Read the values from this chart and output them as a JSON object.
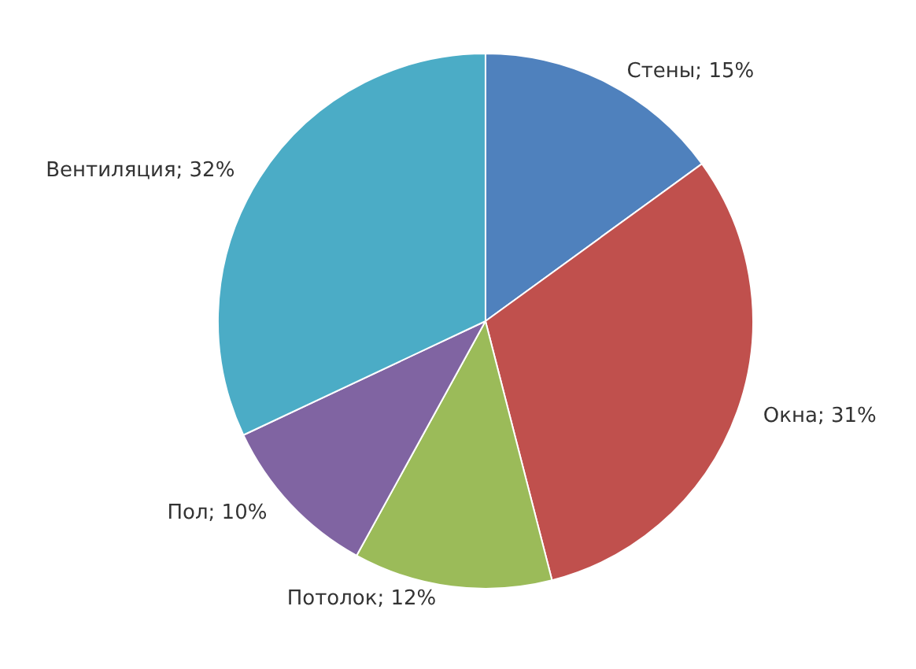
{
  "chart_data": {
    "type": "pie",
    "categories": [
      "Стены",
      "Окна",
      "Потолок",
      "Пол",
      "Вентиляция"
    ],
    "values": [
      15,
      31,
      12,
      10,
      32
    ],
    "value_labels": [
      "15%",
      "31%",
      "12%",
      "10%",
      "32%"
    ],
    "colors": [
      "#4f81bd",
      "#c0504d",
      "#9bbb59",
      "#8064a2",
      "#4bacc6"
    ],
    "legend": false
  }
}
